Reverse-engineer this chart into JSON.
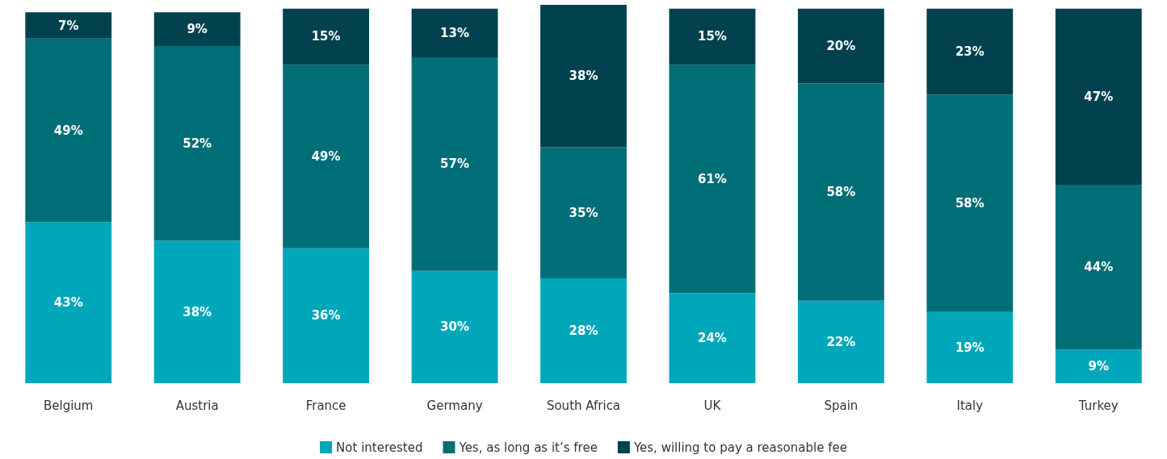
{
  "chart_data": {
    "type": "bar",
    "stacked": true,
    "legend": "bottom",
    "grid": false,
    "tick_labels": "x",
    "categories": [
      "Belgium",
      "Austria",
      "France",
      "Germany",
      "South Africa",
      "UK",
      "Spain",
      "Italy",
      "Turkey"
    ],
    "series": [
      {
        "name": "Not interested",
        "color": "#00a7bb",
        "values": [
          43,
          38,
          36,
          30,
          28,
          24,
          22,
          19,
          9
        ],
        "value_labels": [
          "43%",
          "38%",
          "36%",
          "30%",
          "28%",
          "24%",
          "22%",
          "19%",
          "9%"
        ]
      },
      {
        "name": "Yes, as long as it’s free",
        "color": "#006e77",
        "values": [
          49,
          52,
          49,
          57,
          35,
          61,
          58,
          58,
          44
        ],
        "value_labels": [
          "49%",
          "52%",
          "49%",
          "57%",
          "35%",
          "61%",
          "58%",
          "58%",
          "44%"
        ]
      },
      {
        "name": "Yes, willing to pay a reasonable fee",
        "color": "#00414e",
        "values": [
          7,
          9,
          15,
          13,
          38,
          15,
          20,
          23,
          47
        ],
        "value_labels": [
          "7%",
          "9%",
          "15%",
          "13%",
          "38%",
          "15%",
          "20%",
          "23%",
          "47%"
        ]
      }
    ]
  }
}
